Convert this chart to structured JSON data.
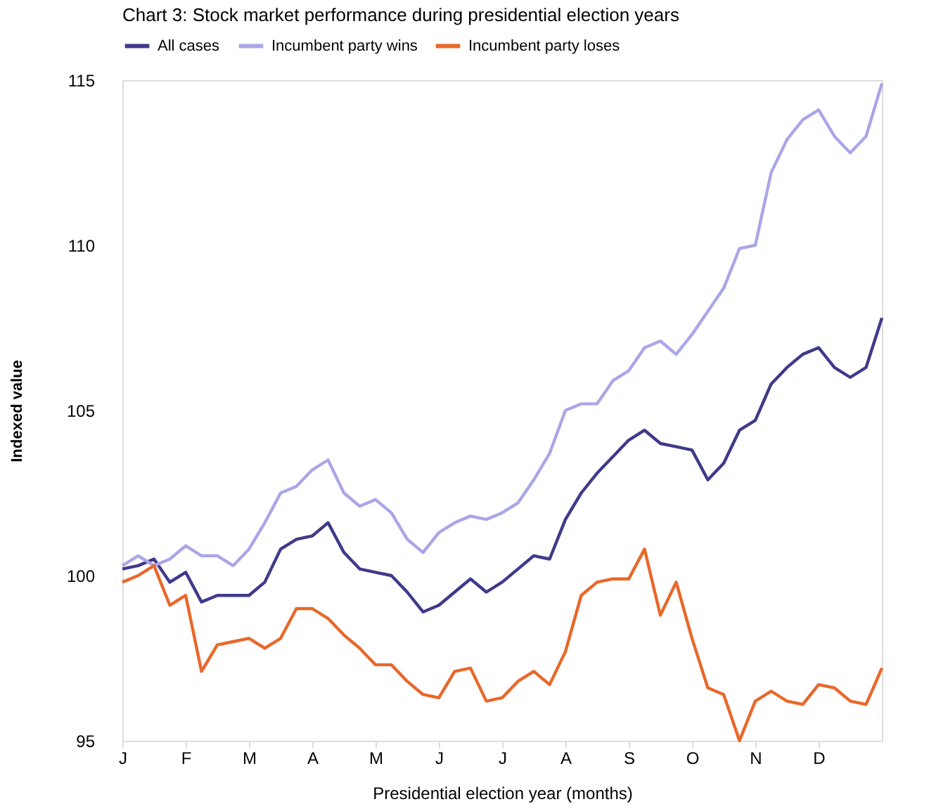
{
  "chart_data": {
    "type": "line",
    "title": "Chart 3: Stock market performance during presidential election years",
    "xlabel": "Presidential election year (months)",
    "ylabel": "Indexed value",
    "categories": [
      "J",
      null,
      null,
      null,
      "F",
      null,
      null,
      null,
      "M",
      null,
      null,
      null,
      "A",
      null,
      null,
      null,
      "M",
      null,
      null,
      null,
      "J",
      null,
      null,
      null,
      "J",
      null,
      null,
      null,
      "A",
      null,
      null,
      null,
      "S",
      null,
      null,
      null,
      "O",
      null,
      null,
      null,
      "N",
      null,
      null,
      null,
      "D",
      null,
      null,
      null,
      null
    ],
    "ylim": [
      95,
      115
    ],
    "yticks": [
      95,
      100,
      105,
      110,
      115
    ],
    "grid": false,
    "legend": "top",
    "marker": "none",
    "line_style": "solid",
    "series": [
      {
        "name": "All cases",
        "color": "#3f3a8a",
        "values": [
          100.2,
          100.3,
          100.5,
          99.8,
          100.1,
          99.2,
          99.4,
          99.4,
          99.4,
          99.8,
          100.8,
          101.1,
          101.2,
          101.6,
          100.7,
          100.2,
          100.1,
          100.0,
          99.5,
          98.9,
          99.1,
          99.5,
          99.9,
          99.5,
          99.8,
          100.2,
          100.6,
          100.5,
          101.7,
          102.5,
          103.1,
          103.6,
          104.1,
          104.4,
          104.0,
          103.9,
          103.8,
          102.9,
          103.4,
          104.4,
          104.7,
          105.8,
          106.3,
          106.7,
          106.9,
          106.3,
          106.0,
          106.3,
          107.8
        ]
      },
      {
        "name": "Incumbent party wins",
        "color": "#aaa6e8",
        "values": [
          100.3,
          100.6,
          100.3,
          100.5,
          100.9,
          100.6,
          100.6,
          100.3,
          100.8,
          101.6,
          102.5,
          102.7,
          103.2,
          103.5,
          102.5,
          102.1,
          102.3,
          101.9,
          101.1,
          100.7,
          101.3,
          101.6,
          101.8,
          101.7,
          101.9,
          102.2,
          102.9,
          103.7,
          105.0,
          105.2,
          105.2,
          105.9,
          106.2,
          106.9,
          107.1,
          106.7,
          107.3,
          108.0,
          108.7,
          109.9,
          110.0,
          112.2,
          113.2,
          113.8,
          114.1,
          113.3,
          112.8,
          113.3,
          114.9
        ]
      },
      {
        "name": "Incumbent party loses",
        "color": "#e8682a",
        "values": [
          99.8,
          100.0,
          100.3,
          99.1,
          99.4,
          97.1,
          97.9,
          98.0,
          98.1,
          97.8,
          98.1,
          99.0,
          99.0,
          98.7,
          98.2,
          97.8,
          97.3,
          97.3,
          96.8,
          96.4,
          96.3,
          97.1,
          97.2,
          96.2,
          96.3,
          96.8,
          97.1,
          96.7,
          97.7,
          99.4,
          99.8,
          99.9,
          99.9,
          100.8,
          98.8,
          99.8,
          98.1,
          96.6,
          96.4,
          95.0,
          96.2,
          96.5,
          96.2,
          96.1,
          96.7,
          96.6,
          96.2,
          96.1,
          97.2
        ]
      }
    ]
  }
}
